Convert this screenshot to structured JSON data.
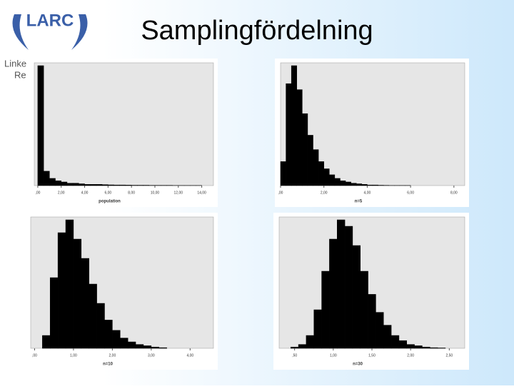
{
  "slide": {
    "title": "Samplingfördelning",
    "logo": "LARC",
    "side_text": [
      "Linke",
      "Re"
    ]
  },
  "chart_data": [
    {
      "type": "histogram",
      "xlabel": "population",
      "color": "#000000",
      "xlim": [
        -0.3,
        15
      ],
      "ylim": [
        0,
        100
      ],
      "bins": [
        0,
        0.5,
        1,
        1.5,
        2,
        2.5,
        3,
        3.5,
        4,
        4.5,
        5,
        5.5,
        6,
        6.5,
        7,
        7.5,
        8,
        8.5,
        9,
        9.5,
        10,
        10.5,
        11,
        11.5,
        12,
        12.5,
        13,
        13.5,
        14
      ],
      "values": [
        100,
        12,
        6,
        4,
        3,
        2,
        2,
        1.5,
        1,
        1,
        1,
        0.8,
        0.6,
        0.5,
        0.5,
        0.4,
        0.3,
        0.3,
        0.3,
        0.2,
        0.2,
        0.2,
        0.2,
        0.1,
        0.1,
        0.1,
        0.1,
        0.1
      ],
      "xticks": [
        {
          "value": 0,
          "label": ",00"
        },
        {
          "value": 2,
          "label": "2,00"
        },
        {
          "value": 4,
          "label": "4,00"
        },
        {
          "value": 6,
          "label": "6,00"
        },
        {
          "value": 8,
          "label": "8,00"
        },
        {
          "value": 10,
          "label": "10,00"
        },
        {
          "value": 12,
          "label": "12,00"
        },
        {
          "value": 14,
          "label": "14,00"
        }
      ]
    },
    {
      "type": "histogram",
      "xlabel": "n=5",
      "color": "#000000",
      "xlim": [
        0,
        8.5
      ],
      "ylim": [
        0,
        100
      ],
      "bins": [
        0,
        0.25,
        0.5,
        0.75,
        1,
        1.25,
        1.5,
        1.75,
        2,
        2.25,
        2.5,
        2.75,
        3,
        3.25,
        3.5,
        3.75,
        4,
        4.25,
        4.5,
        4.75,
        5,
        5.25,
        5.5,
        5.75,
        6
      ],
      "values": [
        20,
        85,
        100,
        80,
        60,
        42,
        30,
        20,
        14,
        9,
        6,
        4,
        3,
        2,
        1.5,
        1,
        0.5,
        0.5,
        0.3,
        0.2,
        0.1,
        0.1,
        0.1,
        0.1
      ],
      "xticks": [
        {
          "value": 0,
          "label": ",00"
        },
        {
          "value": 2,
          "label": "2,00"
        },
        {
          "value": 4,
          "label": "4,00"
        },
        {
          "value": 6,
          "label": "6,00"
        },
        {
          "value": 8,
          "label": "8,00"
        }
      ]
    },
    {
      "type": "histogram",
      "xlabel": "n=10",
      "color": "#000000",
      "xlim": [
        -0.1,
        4.6
      ],
      "ylim": [
        0,
        100
      ],
      "bins": [
        0.2,
        0.4,
        0.6,
        0.8,
        1,
        1.2,
        1.4,
        1.6,
        1.8,
        2,
        2.2,
        2.4,
        2.6,
        2.8,
        3,
        3.2,
        3.4
      ],
      "values": [
        10,
        55,
        90,
        100,
        85,
        70,
        50,
        35,
        22,
        14,
        8,
        5,
        3,
        2,
        1,
        0.5
      ],
      "xticks": [
        {
          "value": 0,
          "label": ",00"
        },
        {
          "value": 1,
          "label": "1,00"
        },
        {
          "value": 2,
          "label": "2,00"
        },
        {
          "value": 3,
          "label": "3,00"
        },
        {
          "value": 4,
          "label": "4,00"
        }
      ]
    },
    {
      "type": "histogram",
      "xlabel": "n=30",
      "color": "#000000",
      "xlim": [
        0.3,
        2.7
      ],
      "ylim": [
        0,
        100
      ],
      "bins": [
        0.45,
        0.55,
        0.65,
        0.75,
        0.85,
        0.95,
        1.05,
        1.15,
        1.25,
        1.35,
        1.45,
        1.55,
        1.65,
        1.75,
        1.85,
        1.95,
        2.05,
        2.15,
        2.25,
        2.35,
        2.45
      ],
      "values": [
        1,
        3,
        10,
        30,
        60,
        85,
        100,
        95,
        80,
        60,
        42,
        28,
        18,
        10,
        6,
        3,
        2,
        1,
        0.5,
        0.3
      ],
      "xticks": [
        {
          "value": 0.5,
          "label": ",50"
        },
        {
          "value": 1,
          "label": "1,00"
        },
        {
          "value": 1.5,
          "label": "1,50"
        },
        {
          "value": 2,
          "label": "2,00"
        },
        {
          "value": 2.5,
          "label": "2,50"
        }
      ]
    }
  ]
}
